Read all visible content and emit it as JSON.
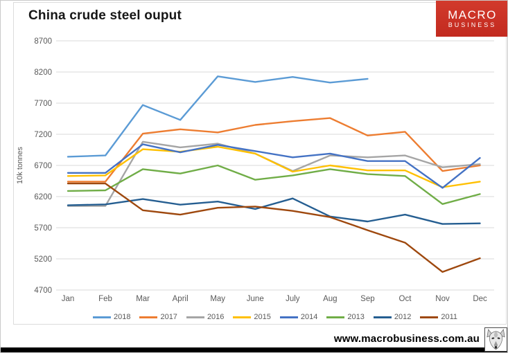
{
  "logo": {
    "line1": "MACRO",
    "line2": "BUSINESS",
    "bg_color": "#C22A1F",
    "text_color": "#FFFFFF"
  },
  "footer": {
    "url": "www.macrobusiness.com.au",
    "bar_color": "#000000"
  },
  "icons": {
    "footer_logo": "wolf-icon"
  },
  "chart_data": {
    "type": "line",
    "title": "China crude steel ouput",
    "ylabel": "10k tonnes",
    "xlabel": "",
    "categories": [
      "Jan",
      "Feb",
      "Mar",
      "April",
      "May",
      "June",
      "July",
      "Aug",
      "Sep",
      "Oct",
      "Nov",
      "Dec"
    ],
    "yticks": [
      8700,
      8200,
      7700,
      7200,
      6700,
      6200,
      5700,
      5200,
      4700
    ],
    "ylim": [
      4700,
      8700
    ],
    "grid": true,
    "grid_color": "#D9D9D9",
    "tick_color": "#595959",
    "legend_position": "bottom",
    "series": [
      {
        "name": "2018",
        "color": "#5B9BD5",
        "values": [
          6840,
          6860,
          7670,
          7430,
          8130,
          8040,
          8120,
          8030,
          8090,
          null,
          null,
          null
        ]
      },
      {
        "name": "2017",
        "color": "#ED7D31",
        "values": [
          6440,
          6440,
          7210,
          7280,
          7230,
          7350,
          7410,
          7460,
          7180,
          7240,
          6610,
          6700
        ]
      },
      {
        "name": "2016",
        "color": "#A5A5A5",
        "values": [
          6050,
          6050,
          7080,
          6990,
          7050,
          6890,
          6610,
          6860,
          6830,
          6860,
          6670,
          6720
        ]
      },
      {
        "name": "2015",
        "color": "#FFC000",
        "values": [
          6530,
          6540,
          6960,
          6920,
          7000,
          6890,
          6600,
          6700,
          6620,
          6620,
          6350,
          6440
        ]
      },
      {
        "name": "2014",
        "color": "#4472C4",
        "values": [
          6580,
          6580,
          7040,
          6910,
          7030,
          6930,
          6830,
          6890,
          6770,
          6770,
          6340,
          6820
        ]
      },
      {
        "name": "2013",
        "color": "#70AD47",
        "values": [
          6290,
          6300,
          6640,
          6570,
          6700,
          6470,
          6540,
          6640,
          6560,
          6530,
          6080,
          6240
        ]
      },
      {
        "name": "2012",
        "color": "#255E91",
        "values": [
          6060,
          6075,
          6160,
          6070,
          6120,
          6000,
          6170,
          5880,
          5800,
          5910,
          5760,
          5770
        ]
      },
      {
        "name": "2011",
        "color": "#9E480E",
        "values": [
          6410,
          6410,
          5980,
          5910,
          6020,
          6040,
          5970,
          5870,
          5660,
          5460,
          4990,
          5210
        ]
      }
    ]
  }
}
